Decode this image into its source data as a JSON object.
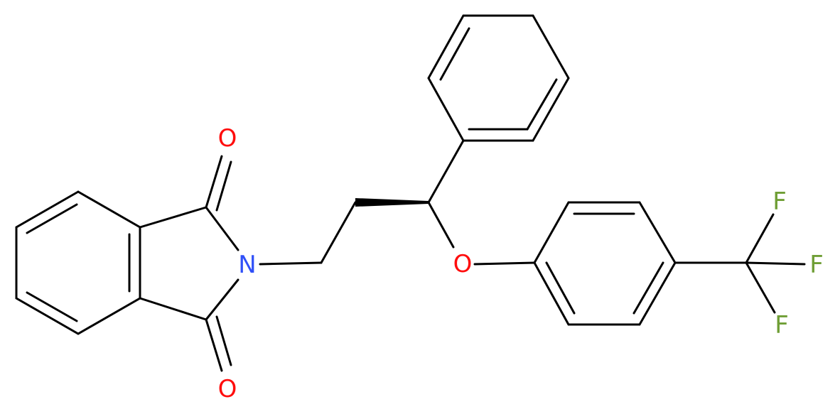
{
  "atoms": [
    {
      "label": "O"
    },
    {
      "label": "N"
    },
    {
      "label": "O"
    },
    {
      "label": "O"
    },
    {
      "label": "F"
    },
    {
      "label": "F"
    },
    {
      "label": "F"
    }
  ]
}
